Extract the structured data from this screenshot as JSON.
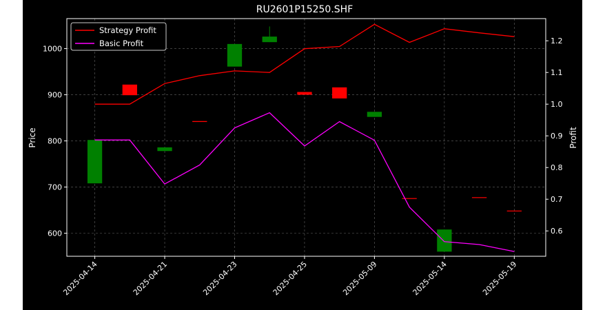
{
  "chart_data": {
    "type": "candlestick+line",
    "title": "RU2601P15250.SHF",
    "xlabel": "",
    "ylabel_left": "Price",
    "ylabel_right": "Profit",
    "x_tick_labels": [
      "2025-04-14",
      "2025-04-21",
      "2025-04-23",
      "2025-04-25",
      "2025-05-09",
      "2025-05-14",
      "2025-05-19"
    ],
    "x_tick_index": [
      0,
      2,
      4,
      6,
      8,
      10,
      12
    ],
    "dates_index": [
      0,
      1,
      2,
      3,
      4,
      5,
      6,
      7,
      8,
      9,
      10,
      11,
      12
    ],
    "xlim": [
      -0.8,
      12.9
    ],
    "ylim_left": [
      550,
      1065
    ],
    "yticks_left": [
      600,
      700,
      800,
      900,
      1000
    ],
    "ylim_right": [
      0.52,
      1.27
    ],
    "yticks_right": [
      0.6,
      0.7,
      0.8,
      0.9,
      1.0,
      1.1,
      1.2
    ],
    "grid": true,
    "legend_position": "top-left",
    "candles": [
      {
        "i": 0,
        "open": 708,
        "close": 802,
        "high": 802,
        "low": 708,
        "color": "green"
      },
      {
        "i": 1,
        "open": 922,
        "close": 899,
        "high": 922,
        "low": 899,
        "color": "red"
      },
      {
        "i": 2,
        "open": 778,
        "close": 786,
        "high": 786,
        "low": 778,
        "color": "green"
      },
      {
        "i": 3,
        "open": 843,
        "close": 841,
        "high": 843,
        "low": 841,
        "color": "red"
      },
      {
        "i": 4,
        "open": 961,
        "close": 1010,
        "high": 1010,
        "low": 961,
        "color": "green"
      },
      {
        "i": 5,
        "open": 1014,
        "close": 1026,
        "high": 1048,
        "low": 1014,
        "color": "green"
      },
      {
        "i": 6,
        "open": 906,
        "close": 900,
        "high": 906,
        "low": 900,
        "color": "red"
      },
      {
        "i": 7,
        "open": 916,
        "close": 892,
        "high": 916,
        "low": 892,
        "color": "red"
      },
      {
        "i": 8,
        "open": 852,
        "close": 863,
        "high": 863,
        "low": 852,
        "color": "green"
      },
      {
        "i": 9,
        "open": 676,
        "close": 675,
        "high": 676,
        "low": 675,
        "color": "red"
      },
      {
        "i": 10,
        "open": 560,
        "close": 608,
        "high": 608,
        "low": 560,
        "color": "green"
      },
      {
        "i": 11,
        "open": 678,
        "close": 677,
        "high": 678,
        "low": 677,
        "color": "red"
      },
      {
        "i": 12,
        "open": 649,
        "close": 648,
        "high": 649,
        "low": 648,
        "color": "red"
      }
    ],
    "series": [
      {
        "name": "Strategy Profit",
        "color": "#ff0000",
        "x": [
          0,
          1,
          2,
          3,
          4,
          5,
          6,
          7,
          8,
          9,
          10,
          11,
          12
        ],
        "values": [
          1.0,
          1.0,
          1.065,
          1.09,
          1.105,
          1.1,
          1.175,
          1.182,
          1.252,
          1.195,
          1.238,
          1.225,
          1.213
        ]
      },
      {
        "name": "Basic Profit",
        "color": "#ff00ff",
        "x": [
          0,
          1,
          2,
          3,
          4,
          5,
          6,
          7,
          8,
          9,
          10,
          11,
          12
        ],
        "values": [
          0.887,
          0.887,
          0.748,
          0.808,
          0.925,
          0.973,
          0.868,
          0.945,
          0.886,
          0.675,
          0.566,
          0.557,
          0.535
        ]
      }
    ],
    "colors": {
      "up": "#008000",
      "down": "#ff0000",
      "background": "#000000",
      "grid": "#7f7f7f",
      "text": "#ffffff"
    }
  }
}
